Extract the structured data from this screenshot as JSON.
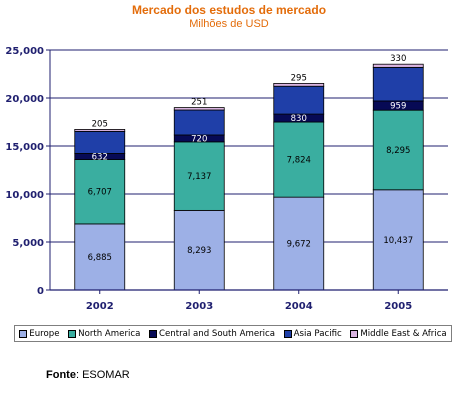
{
  "colors": {
    "title": "#e36c0a",
    "axis": "#1f1f6f",
    "Europe": "#9db0e6",
    "North America": "#3aaea0",
    "Central and South America": "#070a55",
    "Asia Pacific": "#1f3fa8",
    "Middle East & Africa": "#d9b4e0"
  },
  "chart_data": {
    "type": "bar",
    "stacked": true,
    "title": "Mercado dos estudos de mercado",
    "subtitle": "Milhões de USD",
    "categories": [
      "2002",
      "2003",
      "2004",
      "2005"
    ],
    "series": [
      {
        "name": "Europe",
        "values": [
          6885,
          8293,
          9672,
          10437
        ],
        "labels": [
          "6,885",
          "8,293",
          "9,672",
          "10,437"
        ]
      },
      {
        "name": "North America",
        "values": [
          6707,
          7137,
          7824,
          8295
        ],
        "labels": [
          "6,707",
          "7,137",
          "7,824",
          "8,295"
        ]
      },
      {
        "name": "Central and South America",
        "values": [
          632,
          720,
          830,
          959
        ],
        "labels": [
          "632",
          "720",
          "830",
          "959"
        ]
      },
      {
        "name": "Asia Pacific",
        "values": [
          2300,
          2600,
          2900,
          3500
        ],
        "labels": [
          "",
          "",
          "",
          ""
        ]
      },
      {
        "name": "Middle East & Africa",
        "values": [
          205,
          251,
          295,
          330
        ],
        "labels": [
          "205",
          "251",
          "295",
          "330"
        ]
      }
    ],
    "ylim": [
      0,
      25000
    ],
    "yticks": [
      0,
      5000,
      10000,
      15000,
      20000,
      25000
    ],
    "ytick_labels": [
      "0",
      "5,000",
      "10,000",
      "15,000",
      "20,000",
      "25,000"
    ],
    "grid": true,
    "legend_position": "bottom"
  },
  "source": {
    "label": "Fonte",
    "text": ": ESOMAR"
  }
}
